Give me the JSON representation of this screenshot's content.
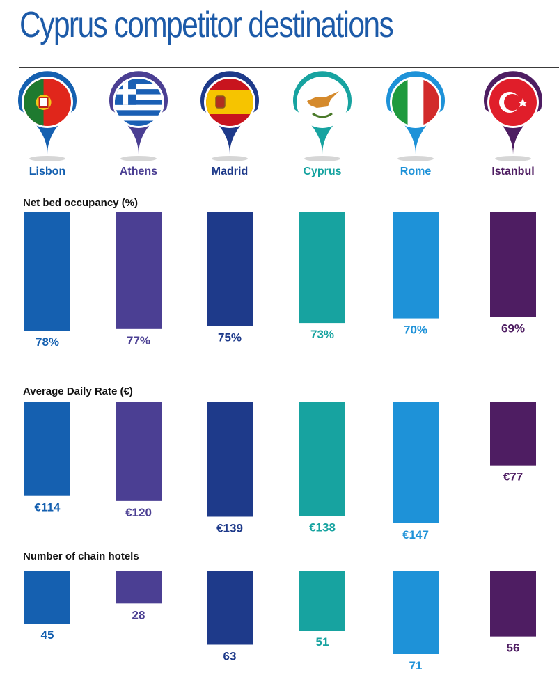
{
  "title": "Cyprus competitor destinations",
  "destinations": [
    {
      "name": "Lisbon",
      "color": "#1560b0",
      "flag": "portugal-flag-icon"
    },
    {
      "name": "Athens",
      "color": "#4b3f93",
      "flag": "greece-flag-icon"
    },
    {
      "name": "Madrid",
      "color": "#1e3a8a",
      "flag": "spain-flag-icon"
    },
    {
      "name": "Cyprus",
      "color": "#17a3a0",
      "flag": "cyprus-flag-icon"
    },
    {
      "name": "Rome",
      "color": "#1e92d8",
      "flag": "italy-flag-icon"
    },
    {
      "name": "Istanbul",
      "color": "#4e1d62",
      "flag": "turkey-flag-icon"
    }
  ],
  "chart_data": [
    {
      "type": "bar",
      "title": "Net bed occupancy (%)",
      "categories": [
        "Lisbon",
        "Athens",
        "Madrid",
        "Cyprus",
        "Rome",
        "Istanbul"
      ],
      "values": [
        78,
        77,
        75,
        73,
        70,
        69
      ],
      "labels": [
        "78%",
        "77%",
        "75%",
        "73%",
        "70%",
        "69%"
      ]
    },
    {
      "type": "bar",
      "title": "Average Daily Rate (€)",
      "categories": [
        "Lisbon",
        "Athens",
        "Madrid",
        "Cyprus",
        "Rome",
        "Istanbul"
      ],
      "values": [
        114,
        120,
        139,
        138,
        147,
        77
      ],
      "labels": [
        "€114",
        "€120",
        "€139",
        "€138",
        "€147",
        "€77"
      ]
    },
    {
      "type": "bar",
      "title": "Number of chain hotels",
      "categories": [
        "Lisbon",
        "Athens",
        "Madrid",
        "Cyprus",
        "Rome",
        "Istanbul"
      ],
      "values": [
        45,
        28,
        63,
        51,
        71,
        56
      ],
      "labels": [
        "45",
        "28",
        "63",
        "51",
        "71",
        "56"
      ]
    }
  ]
}
